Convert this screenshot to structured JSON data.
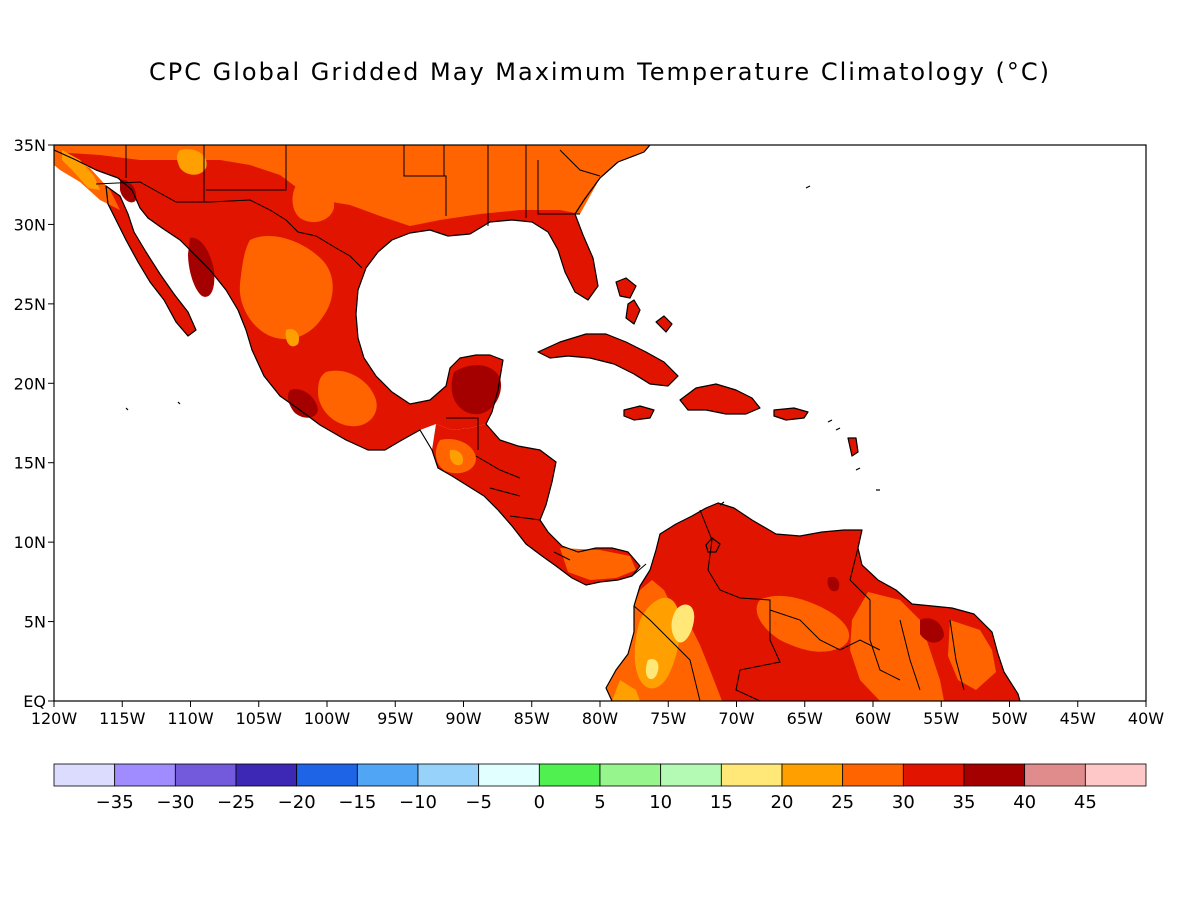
{
  "title": "CPC Global Gridded May Maximum Temperature Climatology (°C)",
  "map": {
    "lon_range": [
      -120,
      -40
    ],
    "lat_range": [
      0,
      35
    ],
    "lon_ticks": [
      "120W",
      "115W",
      "110W",
      "105W",
      "100W",
      "95W",
      "90W",
      "85W",
      "80W",
      "75W",
      "70W",
      "65W",
      "60W",
      "55W",
      "50W",
      "45W",
      "40W"
    ],
    "lat_ticks": [
      "EQ",
      "5N",
      "10N",
      "15N",
      "20N",
      "25N",
      "30N",
      "35N"
    ],
    "ocean_color": "#ffffff",
    "coastline_color": "#000000"
  },
  "colorbar": {
    "colors": [
      "#dcdcff",
      "#a08cff",
      "#735adc",
      "#3c28b4",
      "#1e64e6",
      "#50a5f5",
      "#96d2fa",
      "#e1ffff",
      "#50f050",
      "#96f58c",
      "#b4fab4",
      "#ffe878",
      "#ffa000",
      "#ff6400",
      "#e11400",
      "#a50000",
      "#e18c8c",
      "#ffc8c8"
    ],
    "labels": [
      "−35",
      "−30",
      "−25",
      "−20",
      "−15",
      "−10",
      "−5",
      "0",
      "5",
      "10",
      "15",
      "20",
      "25",
      "30",
      "35",
      "40",
      "45"
    ]
  }
}
